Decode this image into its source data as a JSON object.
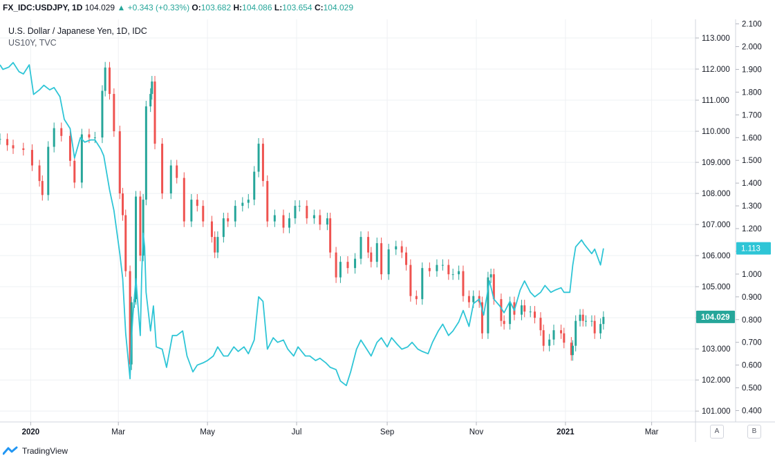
{
  "header": {
    "symbol": "FX_IDC:USDJPY, 1D",
    "last": "104.029",
    "change": "▲ +0.343 (+0.33%)",
    "o_label": "O:",
    "o_val": "103.682",
    "h_label": "H:",
    "h_val": "104.086",
    "l_label": "L:",
    "l_val": "103.654",
    "c_label": "C:",
    "c_val": "104.029"
  },
  "legend": {
    "main": "U.S. Dollar / Japanese Yen, 1D, IDC",
    "second": "US10Y, TVC"
  },
  "footer": {
    "brand": "TradingView"
  },
  "scale_buttons": {
    "a": "A",
    "b": "B"
  },
  "colors": {
    "up": "#26a69a",
    "down": "#ef5350",
    "line": "#2ec5d6",
    "grid": "#eef0f3",
    "axis_text": "#131722"
  },
  "chart_data": {
    "type": "line",
    "x_tick_labels": [
      "2020",
      "Mar",
      "May",
      "Jul",
      "Sep",
      "Nov",
      "2021",
      "Mar"
    ],
    "x_tick_dates": [
      "2020-01-01",
      "2020-03-01",
      "2020-05-01",
      "2020-07-01",
      "2020-09-01",
      "2020-11-01",
      "2021-01-01",
      "2021-03-01"
    ],
    "xlim": [
      "2019-12-11",
      "2021-03-31"
    ],
    "y_left_ticks": [
      "113.000",
      "112.000",
      "111.000",
      "110.000",
      "109.000",
      "108.000",
      "107.000",
      "106.000",
      "105.000",
      "104.000",
      "103.000",
      "102.000",
      "101.000"
    ],
    "ylim_usdjpy": [
      100.65,
      113.6
    ],
    "y_right_ticks": [
      "2.100",
      "2.000",
      "1.900",
      "1.800",
      "1.700",
      "1.600",
      "1.500",
      "1.400",
      "1.300",
      "1.200",
      "1.100",
      "1.000",
      "0.900",
      "0.800",
      "0.700",
      "0.600",
      "0.500",
      "0.400"
    ],
    "ylim_us10y": [
      0.35,
      2.12
    ],
    "last_us10y_label": "1.113",
    "last_usdjpy_label": "104.029",
    "grid": true,
    "series": [
      {
        "name": "U.S. Dollar / Japanese Yen, 1D, IDC",
        "type": "candlestick",
        "color_up": "#26a69a",
        "color_down": "#ef5350",
        "points": [
          [
            "2019-12-11",
            109.75
          ],
          [
            "2019-12-16",
            109.55
          ],
          [
            "2019-12-20",
            109.45
          ],
          [
            "2019-12-27",
            109.4
          ],
          [
            "2020-01-02",
            108.9
          ],
          [
            "2020-01-07",
            108.4
          ],
          [
            "2020-01-09",
            107.95
          ],
          [
            "2020-01-13",
            109.5
          ],
          [
            "2020-01-17",
            110.1
          ],
          [
            "2020-01-22",
            109.85
          ],
          [
            "2020-01-28",
            109.05
          ],
          [
            "2020-01-31",
            108.35
          ],
          [
            "2020-02-05",
            109.9
          ],
          [
            "2020-02-10",
            109.8
          ],
          [
            "2020-02-14",
            109.8
          ],
          [
            "2020-02-19",
            111.3
          ],
          [
            "2020-02-21",
            112.05
          ],
          [
            "2020-02-24",
            111.2
          ],
          [
            "2020-02-27",
            110.0
          ],
          [
            "2020-03-02",
            108.0
          ],
          [
            "2020-03-04",
            107.3
          ],
          [
            "2020-03-06",
            105.5
          ],
          [
            "2020-03-09",
            102.5
          ],
          [
            "2020-03-10",
            104.5
          ],
          [
            "2020-03-12",
            104.6
          ],
          [
            "2020-03-13",
            107.9
          ],
          [
            "2020-03-16",
            106.0
          ],
          [
            "2020-03-18",
            107.8
          ],
          [
            "2020-03-20",
            110.8
          ],
          [
            "2020-03-23",
            111.2
          ],
          [
            "2020-03-24",
            111.6
          ],
          [
            "2020-03-26",
            109.6
          ],
          [
            "2020-03-31",
            108.0
          ],
          [
            "2020-04-06",
            108.9
          ],
          [
            "2020-04-10",
            108.5
          ],
          [
            "2020-04-15",
            107.1
          ],
          [
            "2020-04-20",
            107.8
          ],
          [
            "2020-04-24",
            107.6
          ],
          [
            "2020-04-28",
            107.1
          ],
          [
            "2020-05-04",
            106.6
          ],
          [
            "2020-05-06",
            106.1
          ],
          [
            "2020-05-08",
            106.6
          ],
          [
            "2020-05-12",
            107.2
          ],
          [
            "2020-05-15",
            107.1
          ],
          [
            "2020-05-20",
            107.6
          ],
          [
            "2020-05-25",
            107.7
          ],
          [
            "2020-05-29",
            107.8
          ],
          [
            "2020-06-02",
            108.7
          ],
          [
            "2020-06-05",
            109.6
          ],
          [
            "2020-06-08",
            108.4
          ],
          [
            "2020-06-11",
            107.1
          ],
          [
            "2020-06-16",
            107.3
          ],
          [
            "2020-06-22",
            106.9
          ],
          [
            "2020-06-26",
            107.2
          ],
          [
            "2020-06-30",
            107.6
          ],
          [
            "2020-07-03",
            107.6
          ],
          [
            "2020-07-08",
            107.2
          ],
          [
            "2020-07-13",
            107.3
          ],
          [
            "2020-07-17",
            107.0
          ],
          [
            "2020-07-22",
            107.2
          ],
          [
            "2020-07-24",
            106.1
          ],
          [
            "2020-07-28",
            105.3
          ],
          [
            "2020-07-31",
            105.8
          ],
          [
            "2020-08-05",
            105.6
          ],
          [
            "2020-08-10",
            105.9
          ],
          [
            "2020-08-14",
            106.6
          ],
          [
            "2020-08-19",
            106.1
          ],
          [
            "2020-08-21",
            105.8
          ],
          [
            "2020-08-25",
            106.4
          ],
          [
            "2020-08-28",
            105.4
          ],
          [
            "2020-09-02",
            106.2
          ],
          [
            "2020-09-07",
            106.3
          ],
          [
            "2020-09-11",
            106.1
          ],
          [
            "2020-09-14",
            105.7
          ],
          [
            "2020-09-17",
            104.7
          ],
          [
            "2020-09-21",
            104.6
          ],
          [
            "2020-09-25",
            105.6
          ],
          [
            "2020-09-30",
            105.5
          ],
          [
            "2020-10-05",
            105.7
          ],
          [
            "2020-10-09",
            105.7
          ],
          [
            "2020-10-13",
            105.4
          ],
          [
            "2020-10-16",
            105.4
          ],
          [
            "2020-10-20",
            105.5
          ],
          [
            "2020-10-23",
            104.7
          ],
          [
            "2020-10-27",
            104.5
          ],
          [
            "2020-10-30",
            104.7
          ],
          [
            "2020-11-03",
            104.5
          ],
          [
            "2020-11-05",
            103.5
          ],
          [
            "2020-11-09",
            105.3
          ],
          [
            "2020-11-11",
            105.4
          ],
          [
            "2020-11-13",
            104.6
          ],
          [
            "2020-11-18",
            103.9
          ],
          [
            "2020-11-20",
            103.8
          ],
          [
            "2020-11-24",
            104.5
          ],
          [
            "2020-11-27",
            104.1
          ],
          [
            "2020-12-02",
            104.4
          ],
          [
            "2020-12-04",
            104.2
          ],
          [
            "2020-12-08",
            104.2
          ],
          [
            "2020-12-11",
            104.0
          ],
          [
            "2020-12-15",
            103.6
          ],
          [
            "2020-12-17",
            103.1
          ],
          [
            "2020-12-21",
            103.3
          ],
          [
            "2020-12-24",
            103.6
          ],
          [
            "2020-12-29",
            103.5
          ],
          [
            "2020-12-31",
            103.2
          ],
          [
            "2021-01-05",
            102.8
          ],
          [
            "2021-01-06",
            103.1
          ],
          [
            "2021-01-08",
            103.9
          ],
          [
            "2021-01-11",
            104.1
          ],
          [
            "2021-01-13",
            103.9
          ],
          [
            "2021-01-15",
            103.9
          ],
          [
            "2021-01-19",
            103.9
          ],
          [
            "2021-01-21",
            103.5
          ],
          [
            "2021-01-25",
            103.8
          ],
          [
            "2021-01-27",
            104.029
          ]
        ]
      },
      {
        "name": "US10Y, TVC",
        "type": "line",
        "color": "#2ec5d6",
        "points": [
          [
            "2019-12-11",
            1.92
          ],
          [
            "2019-12-13",
            1.9
          ],
          [
            "2019-12-17",
            1.91
          ],
          [
            "2019-12-20",
            1.93
          ],
          [
            "2019-12-24",
            1.89
          ],
          [
            "2019-12-27",
            1.88
          ],
          [
            "2019-12-31",
            1.92
          ],
          [
            "2020-01-03",
            1.79
          ],
          [
            "2020-01-07",
            1.81
          ],
          [
            "2020-01-10",
            1.83
          ],
          [
            "2020-01-14",
            1.81
          ],
          [
            "2020-01-17",
            1.82
          ],
          [
            "2020-01-21",
            1.78
          ],
          [
            "2020-01-24",
            1.68
          ],
          [
            "2020-01-28",
            1.64
          ],
          [
            "2020-01-31",
            1.51
          ],
          [
            "2020-02-04",
            1.6
          ],
          [
            "2020-02-07",
            1.58
          ],
          [
            "2020-02-11",
            1.59
          ],
          [
            "2020-02-14",
            1.59
          ],
          [
            "2020-02-18",
            1.55
          ],
          [
            "2020-02-20",
            1.52
          ],
          [
            "2020-02-24",
            1.37
          ],
          [
            "2020-02-27",
            1.28
          ],
          [
            "2020-03-02",
            1.09
          ],
          [
            "2020-03-04",
            0.98
          ],
          [
            "2020-03-06",
            0.74
          ],
          [
            "2020-03-09",
            0.54
          ],
          [
            "2020-03-10",
            0.72
          ],
          [
            "2020-03-11",
            0.82
          ],
          [
            "2020-03-13",
            0.98
          ],
          [
            "2020-03-16",
            0.73
          ],
          [
            "2020-03-17",
            1.0
          ],
          [
            "2020-03-18",
            1.18
          ],
          [
            "2020-03-19",
            1.12
          ],
          [
            "2020-03-20",
            0.92
          ],
          [
            "2020-03-23",
            0.75
          ],
          [
            "2020-03-25",
            0.86
          ],
          [
            "2020-03-27",
            0.68
          ],
          [
            "2020-03-31",
            0.67
          ],
          [
            "2020-04-03",
            0.59
          ],
          [
            "2020-04-07",
            0.73
          ],
          [
            "2020-04-10",
            0.73
          ],
          [
            "2020-04-14",
            0.75
          ],
          [
            "2020-04-17",
            0.64
          ],
          [
            "2020-04-21",
            0.57
          ],
          [
            "2020-04-24",
            0.6
          ],
          [
            "2020-04-28",
            0.61
          ],
          [
            "2020-05-01",
            0.62
          ],
          [
            "2020-05-05",
            0.64
          ],
          [
            "2020-05-08",
            0.68
          ],
          [
            "2020-05-12",
            0.64
          ],
          [
            "2020-05-15",
            0.64
          ],
          [
            "2020-05-19",
            0.68
          ],
          [
            "2020-05-22",
            0.66
          ],
          [
            "2020-05-26",
            0.68
          ],
          [
            "2020-05-29",
            0.65
          ],
          [
            "2020-06-02",
            0.71
          ],
          [
            "2020-06-05",
            0.9
          ],
          [
            "2020-06-08",
            0.88
          ],
          [
            "2020-06-11",
            0.67
          ],
          [
            "2020-06-15",
            0.72
          ],
          [
            "2020-06-18",
            0.7
          ],
          [
            "2020-06-22",
            0.71
          ],
          [
            "2020-06-25",
            0.67
          ],
          [
            "2020-06-29",
            0.64
          ],
          [
            "2020-07-02",
            0.68
          ],
          [
            "2020-07-07",
            0.64
          ],
          [
            "2020-07-10",
            0.64
          ],
          [
            "2020-07-14",
            0.62
          ],
          [
            "2020-07-17",
            0.63
          ],
          [
            "2020-07-21",
            0.61
          ],
          [
            "2020-07-24",
            0.59
          ],
          [
            "2020-07-28",
            0.58
          ],
          [
            "2020-07-31",
            0.53
          ],
          [
            "2020-08-04",
            0.51
          ],
          [
            "2020-08-07",
            0.57
          ],
          [
            "2020-08-11",
            0.67
          ],
          [
            "2020-08-14",
            0.71
          ],
          [
            "2020-08-18",
            0.67
          ],
          [
            "2020-08-21",
            0.64
          ],
          [
            "2020-08-25",
            0.7
          ],
          [
            "2020-08-28",
            0.72
          ],
          [
            "2020-09-01",
            0.68
          ],
          [
            "2020-09-04",
            0.72
          ],
          [
            "2020-09-08",
            0.69
          ],
          [
            "2020-09-11",
            0.67
          ],
          [
            "2020-09-15",
            0.68
          ],
          [
            "2020-09-18",
            0.7
          ],
          [
            "2020-09-22",
            0.67
          ],
          [
            "2020-09-25",
            0.66
          ],
          [
            "2020-09-29",
            0.65
          ],
          [
            "2020-10-02",
            0.7
          ],
          [
            "2020-10-06",
            0.75
          ],
          [
            "2020-10-09",
            0.78
          ],
          [
            "2020-10-13",
            0.73
          ],
          [
            "2020-10-16",
            0.75
          ],
          [
            "2020-10-20",
            0.79
          ],
          [
            "2020-10-23",
            0.84
          ],
          [
            "2020-10-27",
            0.77
          ],
          [
            "2020-10-30",
            0.87
          ],
          [
            "2020-11-03",
            0.89
          ],
          [
            "2020-11-06",
            0.82
          ],
          [
            "2020-11-10",
            0.97
          ],
          [
            "2020-11-13",
            0.89
          ],
          [
            "2020-11-17",
            0.86
          ],
          [
            "2020-11-20",
            0.83
          ],
          [
            "2020-11-24",
            0.88
          ],
          [
            "2020-11-27",
            0.84
          ],
          [
            "2020-12-01",
            0.93
          ],
          [
            "2020-12-04",
            0.97
          ],
          [
            "2020-12-08",
            0.92
          ],
          [
            "2020-12-11",
            0.9
          ],
          [
            "2020-12-15",
            0.92
          ],
          [
            "2020-12-18",
            0.95
          ],
          [
            "2020-12-22",
            0.92
          ],
          [
            "2020-12-25",
            0.93
          ],
          [
            "2020-12-29",
            0.94
          ],
          [
            "2020-12-31",
            0.92
          ],
          [
            "2021-01-04",
            0.92
          ],
          [
            "2021-01-06",
            1.04
          ],
          [
            "2021-01-08",
            1.12
          ],
          [
            "2021-01-12",
            1.15
          ],
          [
            "2021-01-14",
            1.13
          ],
          [
            "2021-01-19",
            1.09
          ],
          [
            "2021-01-21",
            1.11
          ],
          [
            "2021-01-25",
            1.04
          ],
          [
            "2021-01-27",
            1.113
          ]
        ]
      }
    ]
  }
}
